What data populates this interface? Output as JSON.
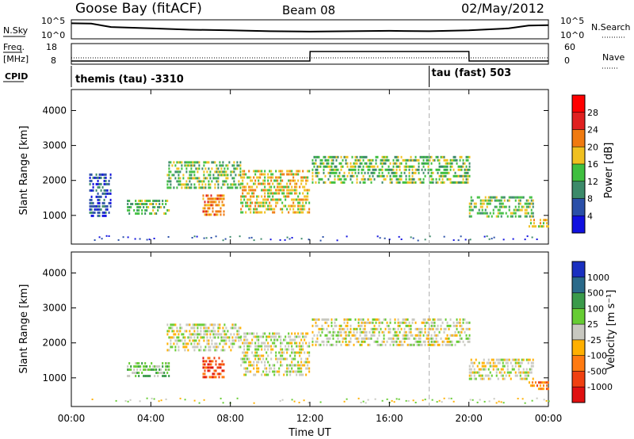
{
  "header": {
    "site": "Goose Bay (fitACF)",
    "beam": "Beam 08",
    "date": "02/May/2012"
  },
  "left_labels": {
    "nsky": "N.Sky",
    "freq_top": "Freq.",
    "freq_unit": "[MHz]",
    "cpid": "CPID",
    "nsky_ticks": [
      "10^5",
      "10^0"
    ],
    "freq_ticks": [
      "18",
      "8"
    ]
  },
  "right_labels": {
    "nsearch": "N.Search",
    "nave": "Nave",
    "nsearch_ticks": [
      "10^5",
      "10^0"
    ],
    "nave_ticks": [
      "60",
      "0"
    ]
  },
  "cpid_annotations": [
    {
      "text": "themis (tau) -3310",
      "time_hours": 0.0
    },
    {
      "text": "tau (fast) 503",
      "time_hours": 18.0
    }
  ],
  "x_axis": {
    "label": "Time UT",
    "ticks": [
      "00:00",
      "04:00",
      "08:00",
      "12:00",
      "16:00",
      "20:00",
      "00:00"
    ],
    "tick_hours": [
      0,
      4,
      8,
      12,
      16,
      20,
      24
    ],
    "range_hours": [
      0,
      24
    ]
  },
  "y_axis": {
    "label": "Slant Range [km]",
    "ticks": [
      "1000",
      "2000",
      "3000",
      "4000"
    ],
    "tick_values": [
      1000,
      2000,
      3000,
      4000
    ],
    "range_km": [
      180,
      4600
    ]
  },
  "colorbars": {
    "power": {
      "label": "Power [dB]",
      "labels": [
        "4",
        "8",
        "12",
        "16",
        "20",
        "24",
        "28"
      ],
      "colors": [
        "#1010e0",
        "#2a4fa8",
        "#3c8a6a",
        "#3fbf3f",
        "#f0c020",
        "#f07a10",
        "#e02020",
        "#ff0000"
      ]
    },
    "velocity": {
      "label": "Velocity [m s⁻¹]",
      "labels": [
        "1000",
        "500",
        "100",
        "25",
        "-25",
        "-100",
        "-500",
        "-1000"
      ],
      "colors": [
        "#1a30c0",
        "#2a6a8a",
        "#3a9a4a",
        "#66cc33",
        "#c8c8c0",
        "#ffb000",
        "#ff7a10",
        "#f04010",
        "#e01010"
      ]
    }
  },
  "chart_data": [
    {
      "type": "line",
      "panel": "N.Sky / N.Search",
      "x_hours": [
        0,
        1,
        2,
        4,
        6,
        8,
        10,
        12,
        14,
        16,
        18,
        20,
        22,
        23,
        24
      ],
      "y_fraction_of_log_range": [
        0.82,
        0.8,
        0.62,
        0.55,
        0.48,
        0.45,
        0.4,
        0.38,
        0.4,
        0.42,
        0.4,
        0.45,
        0.55,
        0.7,
        0.72
      ]
    },
    {
      "type": "line",
      "panel": "Freq / Nave",
      "series": [
        {
          "name": "Freq.",
          "x_hours": [
            0,
            12,
            12.01,
            20,
            20.01,
            24
          ],
          "values_mhz": [
            10,
            10,
            16,
            16,
            10,
            10
          ]
        },
        {
          "name": "Nave",
          "x_hours": [
            0,
            24
          ],
          "values": [
            20,
            20
          ]
        }
      ]
    },
    {
      "type": "heatmap",
      "title": "Power [dB]",
      "xlabel": "Time UT",
      "ylabel": "Slant Range [km]",
      "regions": [
        {
          "t0": 0.9,
          "t1": 2.0,
          "r0": 1000,
          "r1": 2200,
          "level": 1
        },
        {
          "t0": 2.8,
          "t1": 4.9,
          "r0": 1000,
          "r1": 1450,
          "level": 3
        },
        {
          "t0": 4.8,
          "t1": 8.5,
          "r0": 1800,
          "r1": 2550,
          "level": 3
        },
        {
          "t0": 6.6,
          "t1": 7.7,
          "r0": 1000,
          "r1": 1600,
          "level": 5
        },
        {
          "t0": 8.5,
          "t1": 12.0,
          "r0": 1100,
          "r1": 2300,
          "level": 4
        },
        {
          "t0": 12.1,
          "t1": 20.0,
          "r0": 1950,
          "r1": 2700,
          "level": 3
        },
        {
          "t0": 20.0,
          "t1": 23.2,
          "r0": 950,
          "r1": 1550,
          "level": 3
        },
        {
          "t0": 23.0,
          "t1": 24.0,
          "r0": 650,
          "r1": 900,
          "level": 4
        }
      ]
    },
    {
      "type": "heatmap",
      "title": "Velocity [m s⁻¹]",
      "xlabel": "Time UT",
      "ylabel": "Slant Range [km]",
      "regions": [
        {
          "t0": 2.8,
          "t1": 4.9,
          "r0": 1000,
          "r1": 1450,
          "level": 3
        },
        {
          "t0": 4.8,
          "t1": 8.5,
          "r0": 1800,
          "r1": 2550,
          "level": 4
        },
        {
          "t0": 6.6,
          "t1": 7.7,
          "r0": 1000,
          "r1": 1600,
          "level": 7
        },
        {
          "t0": 8.5,
          "t1": 12.0,
          "r0": 1100,
          "r1": 2300,
          "level": 4
        },
        {
          "t0": 12.1,
          "t1": 20.0,
          "r0": 1950,
          "r1": 2700,
          "level": 4
        },
        {
          "t0": 20.0,
          "t1": 23.2,
          "r0": 950,
          "r1": 1550,
          "level": 4
        },
        {
          "t0": 23.0,
          "t1": 24.0,
          "r0": 650,
          "r1": 900,
          "level": 6
        }
      ]
    }
  ]
}
